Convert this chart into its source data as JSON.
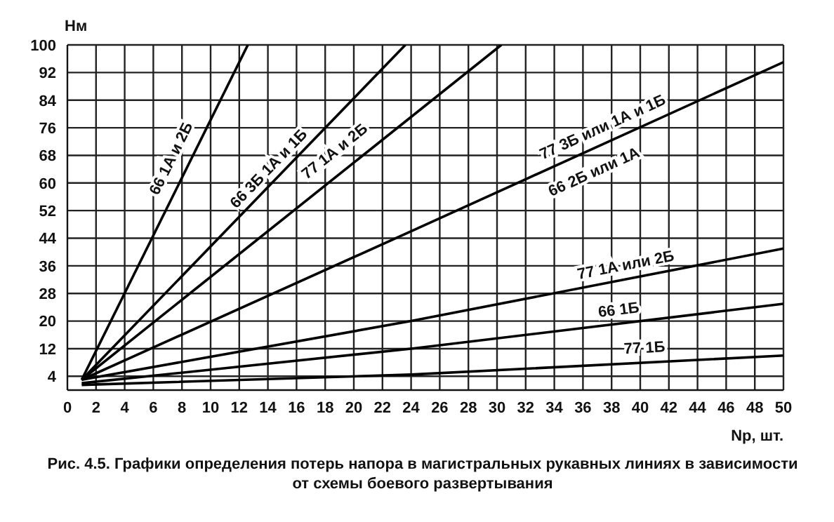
{
  "chart_data": {
    "type": "line",
    "title": "Рис. 4.5. Графики определения потерь напора в магистральных рукавных линиях в зависимости от схемы боевого развертывания",
    "xlabel": "Nр, шт.",
    "ylabel": "Нм",
    "xlim": [
      0,
      50
    ],
    "xticks": [
      0,
      2,
      4,
      6,
      8,
      10,
      12,
      14,
      16,
      18,
      20,
      22,
      24,
      26,
      28,
      30,
      32,
      34,
      36,
      38,
      40,
      42,
      44,
      46,
      48,
      50
    ],
    "ylim": [
      0,
      100
    ],
    "yticks": [
      4,
      12,
      20,
      28,
      36,
      44,
      52,
      60,
      68,
      76,
      84,
      92,
      100
    ],
    "grid": true,
    "marker": "none",
    "line_style": "solid",
    "series": [
      {
        "name": "66 1А и 2Б",
        "color": "#000000",
        "x": [
          1,
          12.6
        ],
        "values": [
          3,
          100
        ]
      },
      {
        "name": "66 3Б 1А и 1Б",
        "color": "#000000",
        "x": [
          1,
          23.6
        ],
        "values": [
          3,
          100
        ]
      },
      {
        "name": "77 1А и 2Б",
        "color": "#000000",
        "x": [
          1,
          30.3
        ],
        "values": [
          3,
          100
        ]
      },
      {
        "name": "77 3Б или 1А и 1Б",
        "color": "#000000",
        "x": [
          1,
          24,
          50
        ],
        "values": [
          3,
          46,
          95
        ]
      },
      {
        "name": "77 1А или 2Б",
        "color": "#000000",
        "x": [
          1,
          24,
          50
        ],
        "values": [
          3,
          20,
          41
        ]
      },
      {
        "name": "66 1Б",
        "color": "#000000",
        "x": [
          1,
          24,
          50
        ],
        "values": [
          2,
          12,
          25
        ]
      },
      {
        "name": "77 1Б",
        "color": "#000000",
        "x": [
          1,
          24,
          50
        ],
        "values": [
          1.5,
          4.5,
          10
        ]
      }
    ],
    "annotations": [
      "66 2Б или 1А"
    ]
  }
}
